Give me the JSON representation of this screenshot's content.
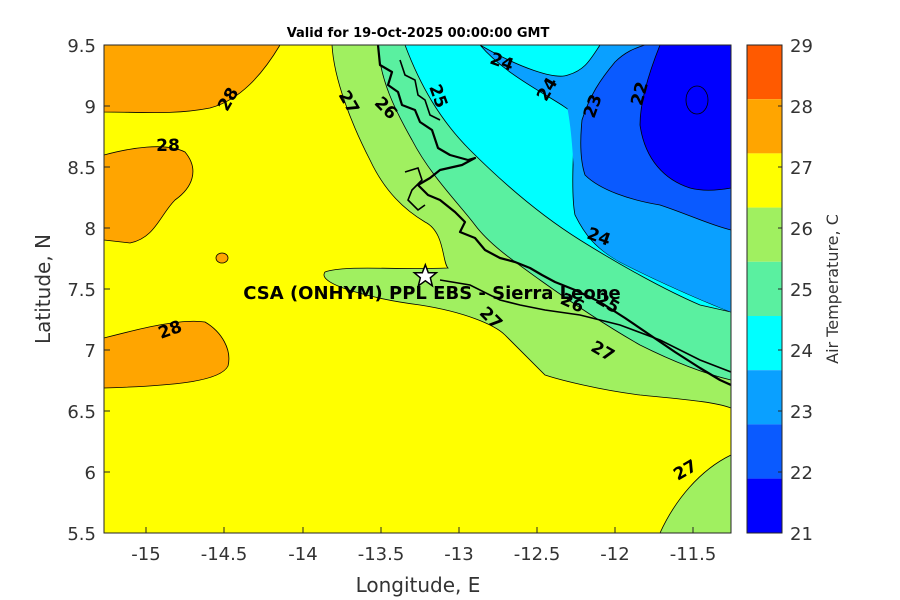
{
  "title": "Valid for 19-Oct-2025 00:00:00 GMT",
  "site_label": "CSA (ONHYM) PPL EBS  - Sierra Leone",
  "xlabel": "Longitude, E",
  "ylabel": "Latitude, N",
  "colorbar_label": "Air Temperature, C",
  "x_ticks": [
    "-15",
    "-14.5",
    "-14",
    "-13.5",
    "-13",
    "-12.5",
    "-12",
    "-11.5"
  ],
  "y_ticks": [
    "9.5",
    "9",
    "8.5",
    "8",
    "7.5",
    "7",
    "6.5",
    "6",
    "5.5"
  ],
  "colorbar_ticks": [
    "29",
    "28",
    "27",
    "26",
    "25",
    "24",
    "23",
    "22",
    "21"
  ],
  "colorbar_colors": [
    "#ff5a00",
    "#ffa500",
    "#ffff00",
    "#a0f060",
    "#5af0a0",
    "#00ffff",
    "#0aa0ff",
    "#0a5aff",
    "#0000ff"
  ],
  "contour_labels": [
    "28",
    "28",
    "28",
    "27",
    "26",
    "25",
    "24",
    "24",
    "23",
    "22",
    "24",
    "27",
    "26",
    "25",
    "27",
    "27"
  ],
  "map": {
    "lon_range": [
      -15.25,
      -11.25
    ],
    "lat_range": [
      5.5,
      9.5
    ],
    "site_lon": -13.2,
    "site_lat": 7.6
  }
}
